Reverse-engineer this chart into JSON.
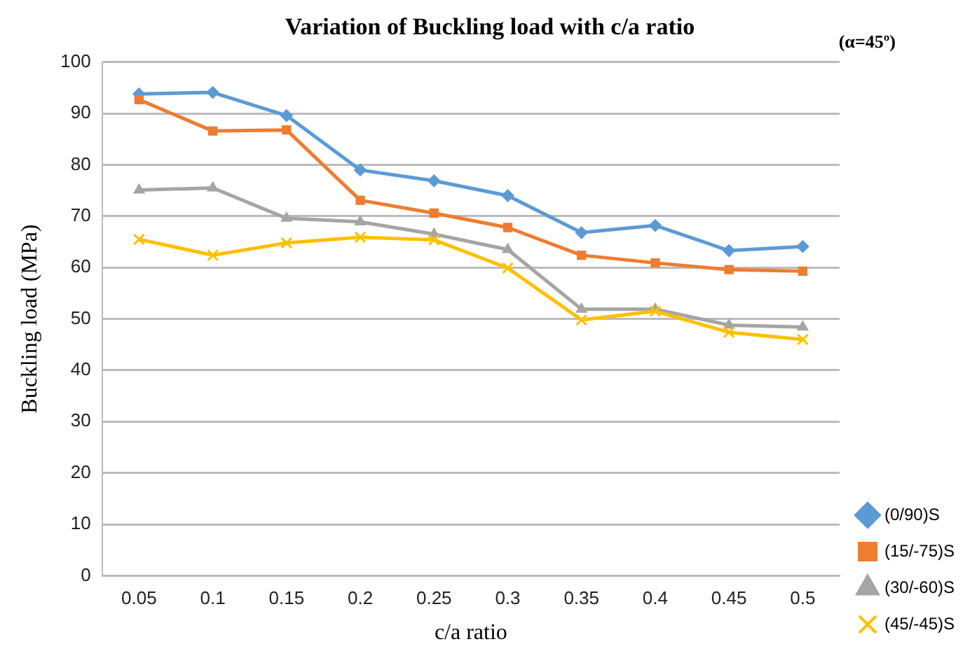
{
  "chart_data": {
    "type": "line",
    "title": "Variation of Buckling load with c/a ratio",
    "xlabel": "c/a ratio",
    "ylabel": "Buckling load (MPa)",
    "annotations": [
      "(α=45º)"
    ],
    "categories": [
      "0.05",
      "0.1",
      "0.15",
      "0.2",
      "0.25",
      "0.3",
      "0.35",
      "0.4",
      "0.45",
      "0.5"
    ],
    "series": [
      {
        "name": "(0/90)S",
        "color": "#5b9bd5",
        "marker": "diamond",
        "values": [
          93.8,
          94.1,
          89.6,
          79,
          76.9,
          74,
          66.8,
          68.2,
          63.3,
          64.1
        ]
      },
      {
        "name": "(15/-75)S",
        "color": "#ed7d31",
        "marker": "square",
        "values": [
          92.7,
          86.6,
          86.8,
          73.1,
          70.6,
          67.8,
          62.4,
          60.9,
          59.6,
          59.3
        ]
      },
      {
        "name": "(30/-60)S",
        "color": "#a5a5a5",
        "marker": "triangle",
        "values": [
          75.1,
          75.5,
          69.6,
          68.9,
          66.5,
          63.5,
          51.9,
          51.9,
          48.8,
          48.4
        ]
      },
      {
        "name": "(45/-45)S",
        "color": "#ffc000",
        "marker": "cross",
        "values": [
          65.5,
          62.4,
          64.8,
          65.9,
          65.4,
          59.9,
          49.8,
          51.5,
          47.4,
          46
        ]
      }
    ],
    "ylim": [
      0,
      100
    ],
    "yticks": [
      0,
      10,
      20,
      30,
      40,
      50,
      60,
      70,
      80,
      90,
      100
    ],
    "grid": "y",
    "legend": "right"
  }
}
